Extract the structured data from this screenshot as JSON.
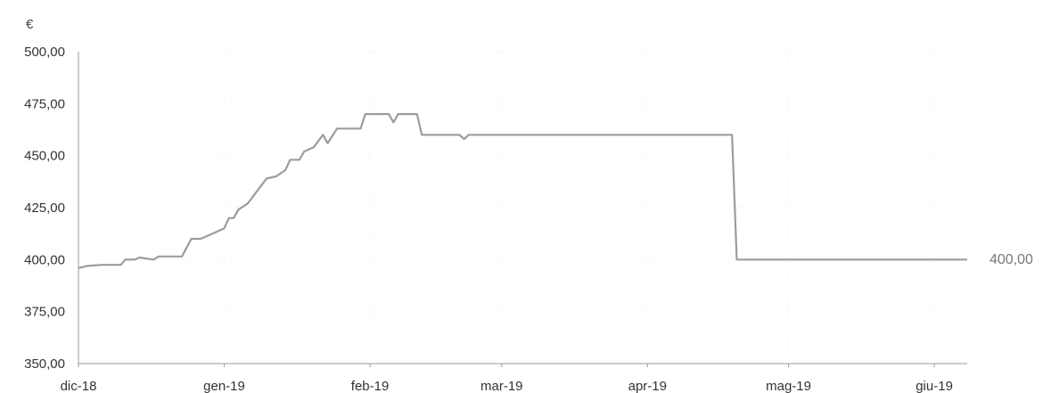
{
  "chart_data": {
    "type": "line",
    "unit_label": "€",
    "ylim": [
      350,
      500
    ],
    "y_ticks": [
      {
        "value": 500,
        "label": "500,00"
      },
      {
        "value": 475,
        "label": "475,00"
      },
      {
        "value": 450,
        "label": "450,00"
      },
      {
        "value": 425,
        "label": "425,00"
      },
      {
        "value": 400,
        "label": "400,00"
      },
      {
        "value": 375,
        "label": "375,00"
      },
      {
        "value": 350,
        "label": "350,00"
      }
    ],
    "xlim": [
      "2018-12-01",
      "2019-06-08"
    ],
    "x_ticks": [
      {
        "date": "2018-12-01",
        "label": "dic-18"
      },
      {
        "date": "2019-01-01",
        "label": "gen-19"
      },
      {
        "date": "2019-02-01",
        "label": "feb-19"
      },
      {
        "date": "2019-03-01",
        "label": "mar-19"
      },
      {
        "date": "2019-04-01",
        "label": "apr-19"
      },
      {
        "date": "2019-05-01",
        "label": "mag-19"
      },
      {
        "date": "2019-06-01",
        "label": "giu-19"
      }
    ],
    "grid": true,
    "series": [
      {
        "color": "#9c9c9c",
        "points": [
          [
            "2018-12-01",
            396.0
          ],
          [
            "2018-12-03",
            397.0
          ],
          [
            "2018-12-06",
            397.5
          ],
          [
            "2018-12-10",
            397.5
          ],
          [
            "2018-12-11",
            400.0
          ],
          [
            "2018-12-13",
            400.0
          ],
          [
            "2018-12-14",
            401.0
          ],
          [
            "2018-12-17",
            400.0
          ],
          [
            "2018-12-18",
            401.5
          ],
          [
            "2018-12-23",
            401.5
          ],
          [
            "2018-12-25",
            410.0
          ],
          [
            "2018-12-27",
            410.0
          ],
          [
            "2018-12-30",
            413.0
          ],
          [
            "2019-01-01",
            415.0
          ],
          [
            "2019-01-02",
            420.0
          ],
          [
            "2019-01-03",
            420.0
          ],
          [
            "2019-01-04",
            424.0
          ],
          [
            "2019-01-06",
            427.0
          ],
          [
            "2019-01-08",
            433.0
          ],
          [
            "2019-01-10",
            439.0
          ],
          [
            "2019-01-12",
            440.0
          ],
          [
            "2019-01-14",
            443.0
          ],
          [
            "2019-01-15",
            448.0
          ],
          [
            "2019-01-17",
            448.0
          ],
          [
            "2019-01-18",
            452.0
          ],
          [
            "2019-01-20",
            454.0
          ],
          [
            "2019-01-22",
            460.0
          ],
          [
            "2019-01-23",
            456.0
          ],
          [
            "2019-01-25",
            463.0
          ],
          [
            "2019-01-30",
            463.0
          ],
          [
            "2019-01-31",
            470.0
          ],
          [
            "2019-02-05",
            470.0
          ],
          [
            "2019-02-06",
            466.0
          ],
          [
            "2019-02-07",
            470.0
          ],
          [
            "2019-02-11",
            470.0
          ],
          [
            "2019-02-12",
            460.0
          ],
          [
            "2019-02-20",
            460.0
          ],
          [
            "2019-02-21",
            458.0
          ],
          [
            "2019-02-22",
            460.0
          ],
          [
            "2019-04-19",
            460.0
          ],
          [
            "2019-04-20",
            400.0
          ],
          [
            "2019-06-08",
            400.0
          ]
        ]
      }
    ],
    "end_label": "400,00"
  }
}
